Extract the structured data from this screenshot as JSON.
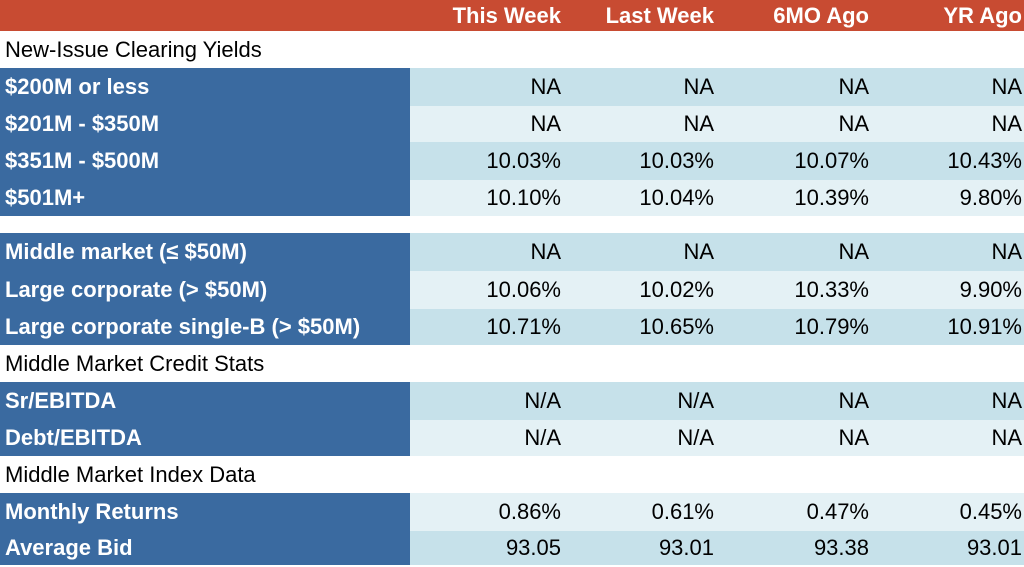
{
  "header": {
    "columns": [
      "",
      "This Week",
      "Last Week",
      "6MO Ago",
      "YR Ago"
    ]
  },
  "sections": [
    {
      "title": "New-Issue Clearing Yields",
      "rows": [
        {
          "label": "$200M or less",
          "values": [
            "NA",
            "NA",
            "NA",
            "NA"
          ]
        },
        {
          "label": "$201M - $350M",
          "values": [
            "NA",
            "NA",
            "NA",
            "NA"
          ]
        },
        {
          "label": "$351M - $500M",
          "values": [
            "10.03%",
            "10.03%",
            "10.07%",
            "10.43%"
          ]
        },
        {
          "label": "$501M+",
          "values": [
            "10.10%",
            "10.04%",
            "10.39%",
            "9.80%"
          ]
        }
      ]
    },
    {
      "title": "",
      "rows": [
        {
          "label": "Middle market (≤ $50M)",
          "values": [
            "NA",
            "NA",
            "NA",
            "NA"
          ]
        },
        {
          "label": "Large corporate (> $50M)",
          "values": [
            "10.06%",
            "10.02%",
            "10.33%",
            "9.90%"
          ]
        },
        {
          "label": "Large corporate single-B (> $50M)",
          "values": [
            "10.71%",
            "10.65%",
            "10.79%",
            "10.91%"
          ]
        }
      ]
    },
    {
      "title": "Middle Market Credit Stats",
      "rows": [
        {
          "label": "Sr/EBITDA",
          "values": [
            "N/A",
            "N/A",
            "NA",
            "NA"
          ]
        },
        {
          "label": "Debt/EBITDA",
          "values": [
            "N/A",
            "N/A",
            "NA",
            "NA"
          ]
        }
      ]
    },
    {
      "title": "Middle Market Index Data",
      "rows": [
        {
          "label": "Monthly Returns",
          "values": [
            "0.86%",
            "0.61%",
            "0.47%",
            "0.45%"
          ]
        },
        {
          "label": "Average Bid",
          "values": [
            "93.05",
            "93.01",
            "93.38",
            "93.01"
          ]
        }
      ]
    }
  ]
}
